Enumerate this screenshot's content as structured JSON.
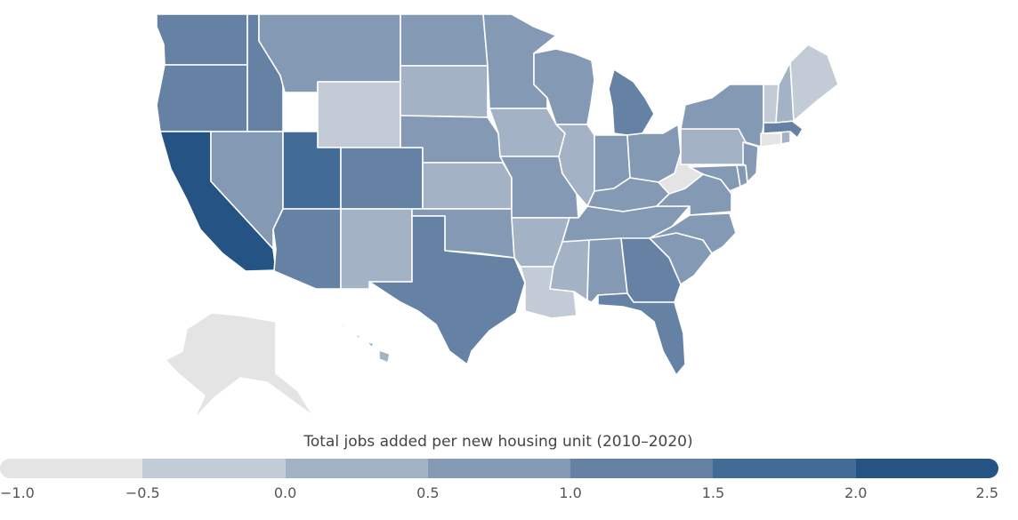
{
  "legend": {
    "title": "Total jobs added per new housing unit (2010–2020)",
    "ticks": [
      "−1.0",
      "−0.5",
      "0.0",
      "0.5",
      "1.0",
      "1.5",
      "2.0",
      "2.5"
    ],
    "bins": [
      {
        "from": -1.0,
        "to": -0.5,
        "color": "#e4e4e4"
      },
      {
        "from": -0.5,
        "to": 0.0,
        "color": "#c3cbd6"
      },
      {
        "from": 0.0,
        "to": 0.5,
        "color": "#a3b2c5"
      },
      {
        "from": 0.5,
        "to": 1.0,
        "color": "#8499b4"
      },
      {
        "from": 1.0,
        "to": 1.5,
        "color": "#6582a5"
      },
      {
        "from": 1.5,
        "to": 2.0,
        "color": "#426b96"
      },
      {
        "from": 2.0,
        "to": 2.5,
        "color": "#245384"
      }
    ]
  },
  "states": [
    {
      "name": "Washington",
      "value": 1.2
    },
    {
      "name": "Oregon",
      "value": 1.2
    },
    {
      "name": "California",
      "value": 2.3
    },
    {
      "name": "Idaho",
      "value": 1.2
    },
    {
      "name": "Nevada",
      "value": 0.8
    },
    {
      "name": "Montana",
      "value": 0.7
    },
    {
      "name": "Wyoming",
      "value": -0.3
    },
    {
      "name": "Utah",
      "value": 1.7
    },
    {
      "name": "Colorado",
      "value": 1.3
    },
    {
      "name": "Arizona",
      "value": 1.1
    },
    {
      "name": "New Mexico",
      "value": 0.2
    },
    {
      "name": "North Dakota",
      "value": 0.7
    },
    {
      "name": "South Dakota",
      "value": 0.3
    },
    {
      "name": "Nebraska",
      "value": 0.8
    },
    {
      "name": "Kansas",
      "value": 0.3
    },
    {
      "name": "Oklahoma",
      "value": 0.7
    },
    {
      "name": "Texas",
      "value": 1.2
    },
    {
      "name": "Minnesota",
      "value": 0.8
    },
    {
      "name": "Iowa",
      "value": 0.3
    },
    {
      "name": "Missouri",
      "value": 0.7
    },
    {
      "name": "Arkansas",
      "value": 0.3
    },
    {
      "name": "Louisiana",
      "value": -0.3
    },
    {
      "name": "Wisconsin",
      "value": 0.8
    },
    {
      "name": "Illinois",
      "value": 0.3
    },
    {
      "name": "Michigan",
      "value": 1.1
    },
    {
      "name": "Indiana",
      "value": 0.8
    },
    {
      "name": "Ohio",
      "value": 0.8
    },
    {
      "name": "Kentucky",
      "value": 0.8
    },
    {
      "name": "Tennessee",
      "value": 0.8
    },
    {
      "name": "Mississippi",
      "value": 0.2
    },
    {
      "name": "Alabama",
      "value": 0.7
    },
    {
      "name": "Georgia",
      "value": 1.2
    },
    {
      "name": "Florida",
      "value": 1.2
    },
    {
      "name": "South Carolina",
      "value": 0.8
    },
    {
      "name": "North Carolina",
      "value": 0.8
    },
    {
      "name": "Virginia",
      "value": 0.8
    },
    {
      "name": "West Virginia",
      "value": -0.8
    },
    {
      "name": "Pennsylvania",
      "value": 0.3
    },
    {
      "name": "New York",
      "value": 0.8
    },
    {
      "name": "Maryland",
      "value": 0.7
    },
    {
      "name": "Delaware",
      "value": 0.7
    },
    {
      "name": "New Jersey",
      "value": 0.7
    },
    {
      "name": "Connecticut",
      "value": -0.8
    },
    {
      "name": "Rhode Island",
      "value": 0.3
    },
    {
      "name": "Massachusetts",
      "value": 1.3
    },
    {
      "name": "Vermont",
      "value": -0.3
    },
    {
      "name": "New Hampshire",
      "value": 0.3
    },
    {
      "name": "Maine",
      "value": -0.2
    },
    {
      "name": "Alaska",
      "value": -0.9
    },
    {
      "name": "Hawaii",
      "value": 0.3
    }
  ]
}
